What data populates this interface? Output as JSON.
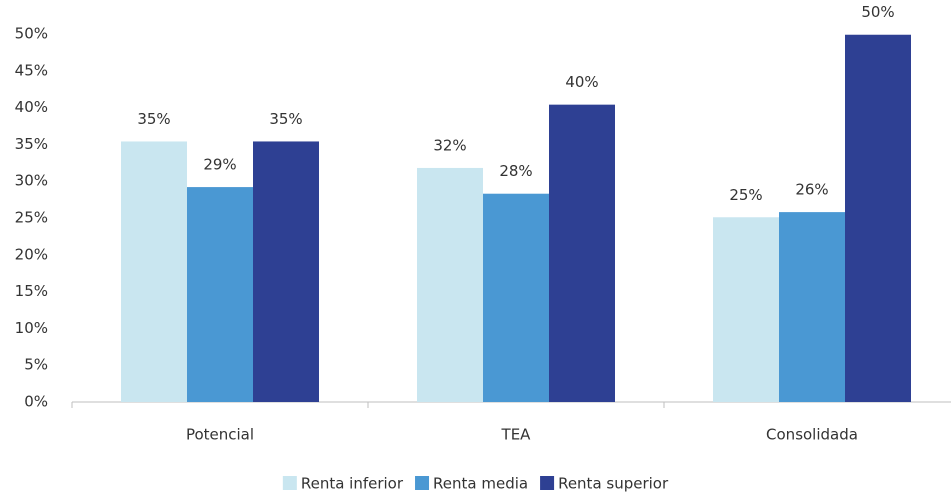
{
  "chart_data": {
    "type": "bar",
    "categories": [
      "Potencial",
      "TEA",
      "Consolidada"
    ],
    "series": [
      {
        "name": "Renta inferior",
        "color": "#c9e6f0",
        "values": [
          35.4,
          31.8,
          25.1
        ],
        "value_labels": [
          "35%",
          "32%",
          "25%"
        ]
      },
      {
        "name": "Renta media",
        "color": "#4a98d3",
        "values": [
          29.2,
          28.3,
          25.8
        ],
        "value_labels": [
          "29%",
          "28%",
          "26%"
        ]
      },
      {
        "name": "Renta superior",
        "color": "#2e4093",
        "values": [
          35.4,
          40.4,
          49.9
        ],
        "value_labels": [
          "35%",
          "40%",
          "50%"
        ]
      }
    ],
    "ylim": [
      0,
      50
    ],
    "yticks": [
      {
        "value": 0,
        "label": "0%"
      },
      {
        "value": 5,
        "label": "5%"
      },
      {
        "value": 10,
        "label": "10%"
      },
      {
        "value": 15,
        "label": "15%"
      },
      {
        "value": 20,
        "label": "20%"
      },
      {
        "value": 25,
        "label": "25%"
      },
      {
        "value": 30,
        "label": "30%"
      },
      {
        "value": 35,
        "label": "35%"
      },
      {
        "value": 40,
        "label": "40%"
      },
      {
        "value": 45,
        "label": "45%"
      },
      {
        "value": 50,
        "label": "50%"
      }
    ],
    "grid": false,
    "legend": "bottom"
  }
}
